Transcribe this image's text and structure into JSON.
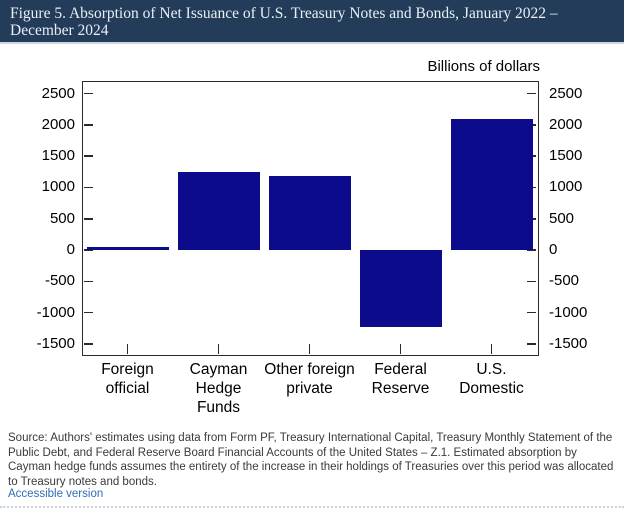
{
  "header": {
    "title": "Figure 5. Absorption of Net Issuance of U.S. Treasury Notes and Bonds, January 2022 – December 2024",
    "bg_color": "#223c59"
  },
  "chart_data": {
    "type": "bar",
    "title": "Figure 5. Absorption of Net Issuance of U.S. Treasury Notes and Bonds, January 2022 – December 2024",
    "axis_title": "Billions of dollars",
    "categories": [
      "Foreign official",
      "Cayman Hedge Funds",
      "Other foreign private",
      "Federal Reserve",
      "U.S. Domestic"
    ],
    "values": [
      55,
      1245,
      1180,
      -1225,
      2100
    ],
    "xlabel": "",
    "ylabel": "Billions of dollars",
    "ylim": [
      -1660,
      2700
    ],
    "yticks": [
      -1500,
      -1000,
      -500,
      0,
      500,
      1000,
      1500,
      2000,
      2500
    ],
    "bar_color": "#0b0b8c",
    "grid": false,
    "legend": "none",
    "dual_axis_labels": true
  },
  "footer": {
    "source": "Source: Authors' estimates using data from Form PF, Treasury International Capital, Treasury Monthly Statement of the Public Debt, and Federal Reserve Board Financial Accounts of the United States – Z.1. Estimated absorption by Cayman hedge funds assumes the entirety of the increase in their holdings of Treasuries over this period was allocated to Treasury notes and bonds.",
    "accessible_link": "Accessible version"
  }
}
